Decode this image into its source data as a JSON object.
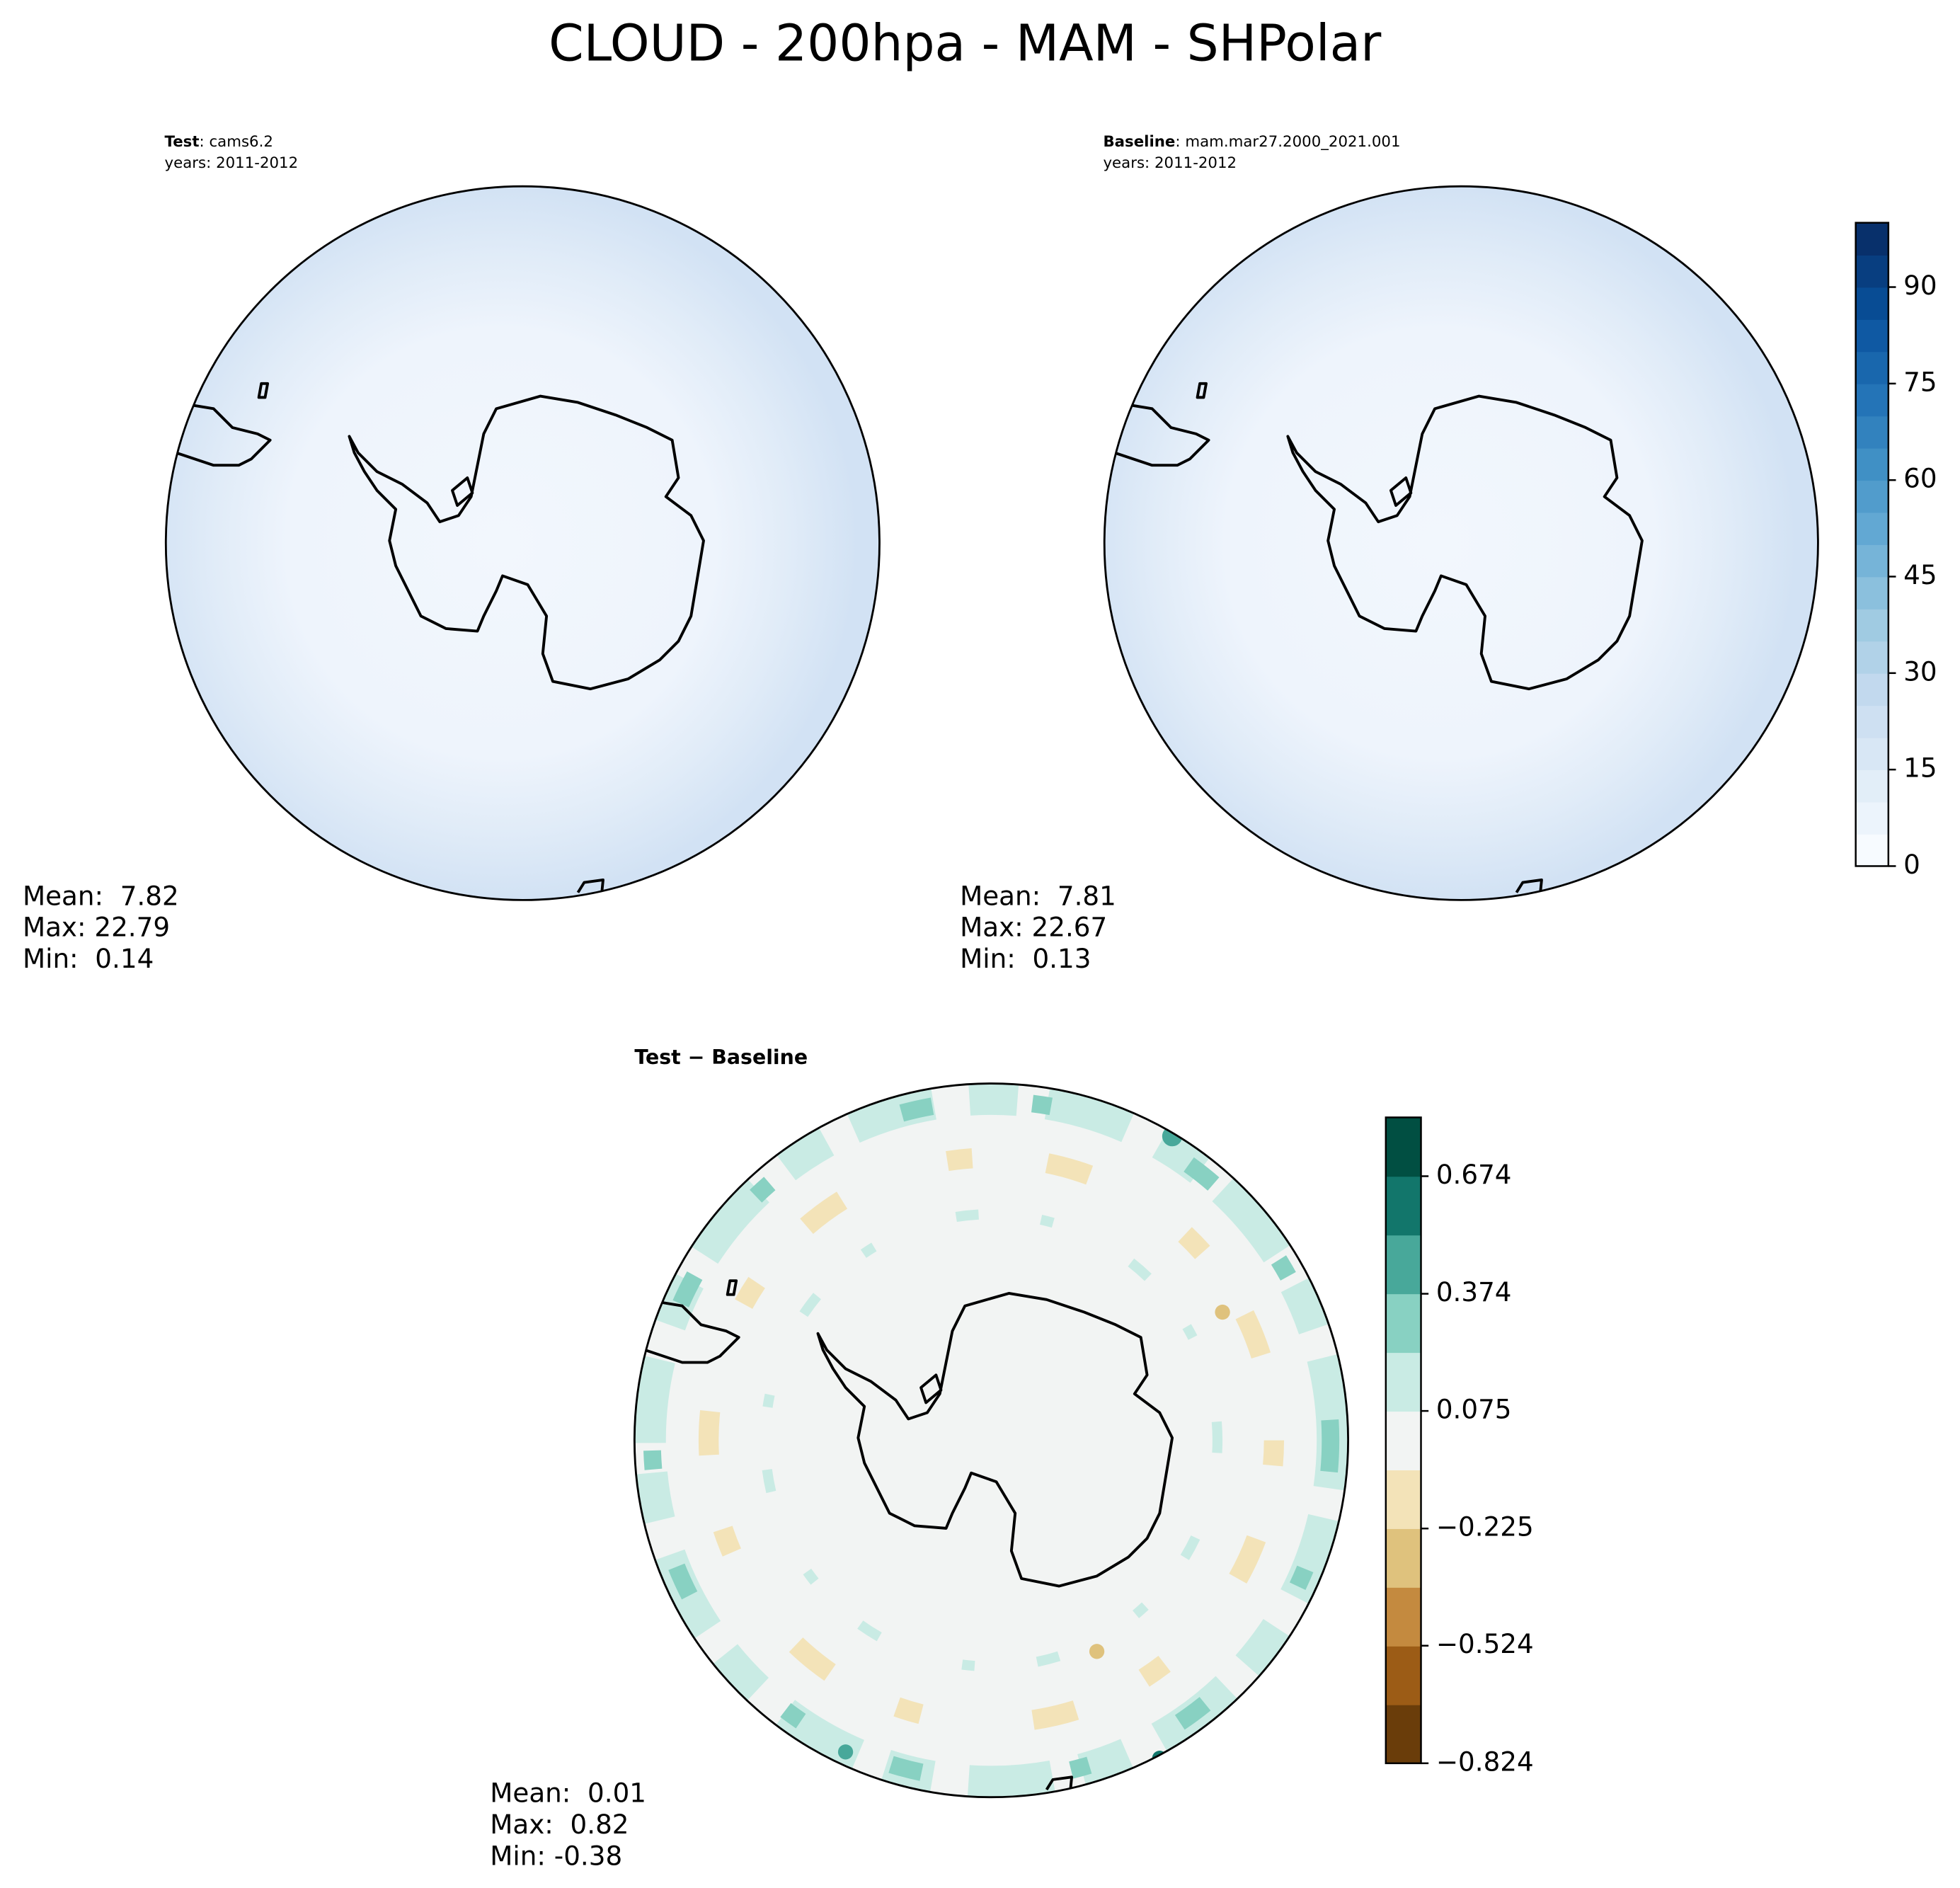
{
  "title": "CLOUD - 200hpa - MAM - SHPolar",
  "panels": [
    {
      "label": "Test",
      "name": ": cams6.2",
      "years": "years: 2011-2012",
      "stats": [
        "Mean:  7.82",
        "Max: 22.79",
        "Min:  0.14"
      ]
    },
    {
      "label": "Baseline",
      "name": ": mam.mar27.2000_2021.001",
      "years": "years: 2011-2012",
      "stats": [
        "Mean:  7.81",
        "Max: 22.67",
        "Min:  0.13"
      ]
    },
    {
      "label": "Test − Baseline",
      "stats": [
        "Mean:  0.01",
        "Max:  0.82",
        "Min: -0.38"
      ]
    }
  ],
  "colorbars": [
    {
      "clim": [
        0,
        100
      ],
      "ticks": [
        0,
        15,
        30,
        45,
        60,
        75,
        90
      ],
      "levels": 20,
      "colors": [
        "#f7fbff",
        "#deebf7",
        "#c6dbef",
        "#9ecae1",
        "#6baed6",
        "#4292c6",
        "#2171b5",
        "#08519c",
        "#08306b"
      ]
    },
    {
      "clim": [
        -0.824,
        0.824
      ],
      "ticks": [
        {
          "value": -0.824,
          "label": "−0.824"
        },
        {
          "value": -0.524,
          "label": "−0.524"
        },
        {
          "value": -0.225,
          "label": "−0.225"
        },
        0.075,
        0.374,
        0.674
      ],
      "levels": 11,
      "colors": [
        "#6a3d0a",
        "#9c5c16",
        "#c48a3f",
        "#dfc27d",
        "#f3e3b8",
        "#f2f4f3",
        "#c9ebe4",
        "#88d1c2",
        "#48a89a",
        "#12766b",
        "#014f42"
      ]
    }
  ]
}
